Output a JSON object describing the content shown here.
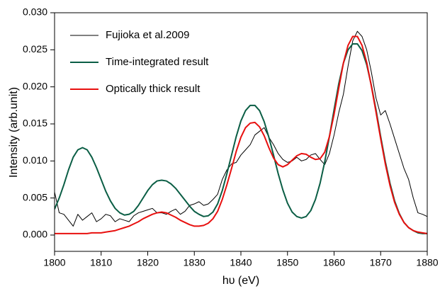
{
  "chart_data": {
    "type": "line",
    "xlabel": "hυ (eV)",
    "ylabel": "Intensity (arb.unit)",
    "xlim": [
      1800,
      1880
    ],
    "xticks": [
      1800,
      1810,
      1820,
      1830,
      1840,
      1850,
      1860,
      1870,
      1880
    ],
    "ylim": [
      -0.0022,
      0.03
    ],
    "yticks": [
      {
        "value": 0,
        "label": "0.000"
      },
      {
        "value": 0.005,
        "label": "0.005"
      },
      {
        "value": 0.01,
        "label": "0.010"
      },
      {
        "value": 0.015,
        "label": "0.015"
      },
      {
        "value": 0.02,
        "label": "0.020"
      },
      {
        "value": 0.025,
        "label": "0.025"
      },
      {
        "value": 0.03,
        "label": "0.030"
      }
    ],
    "legend": "upper left",
    "x": [
      1800,
      1801,
      1802,
      1803,
      1804,
      1805,
      1806,
      1807,
      1808,
      1809,
      1810,
      1811,
      1812,
      1813,
      1814,
      1815,
      1816,
      1817,
      1818,
      1819,
      1820,
      1821,
      1822,
      1823,
      1824,
      1825,
      1826,
      1827,
      1828,
      1829,
      1830,
      1831,
      1832,
      1833,
      1834,
      1835,
      1836,
      1837,
      1838,
      1839,
      1840,
      1841,
      1842,
      1843,
      1844,
      1845,
      1846,
      1847,
      1848,
      1849,
      1850,
      1851,
      1852,
      1853,
      1854,
      1855,
      1856,
      1857,
      1858,
      1859,
      1860,
      1861,
      1862,
      1863,
      1864,
      1865,
      1866,
      1867,
      1868,
      1869,
      1870,
      1871,
      1872,
      1873,
      1874,
      1875,
      1876,
      1877,
      1878,
      1879,
      1880
    ],
    "series": [
      {
        "name": "Fujioka et al.2009",
        "color": "#000000",
        "width": 1,
        "values": [
          0.0058,
          0.003,
          0.0028,
          0.002,
          0.0012,
          0.0028,
          0.002,
          0.0025,
          0.003,
          0.0018,
          0.0022,
          0.0028,
          0.0026,
          0.0018,
          0.0022,
          0.002,
          0.0018,
          0.0026,
          0.003,
          0.0032,
          0.0034,
          0.0036,
          0.003,
          0.003,
          0.0028,
          0.0032,
          0.0035,
          0.0028,
          0.0032,
          0.004,
          0.0042,
          0.0045,
          0.004,
          0.0042,
          0.0048,
          0.0055,
          0.0075,
          0.0088,
          0.0096,
          0.0098,
          0.0108,
          0.0115,
          0.0122,
          0.0135,
          0.014,
          0.0145,
          0.0132,
          0.0122,
          0.011,
          0.0102,
          0.0098,
          0.01,
          0.0105,
          0.01,
          0.0102,
          0.0108,
          0.011,
          0.0102,
          0.0095,
          0.011,
          0.0135,
          0.0165,
          0.019,
          0.0228,
          0.0262,
          0.0275,
          0.0268,
          0.025,
          0.022,
          0.0185,
          0.0162,
          0.0168,
          0.015,
          0.013,
          0.011,
          0.009,
          0.0075,
          0.005,
          0.003,
          0.0028,
          0.0025
        ]
      },
      {
        "name": "Time-integrated result",
        "color": "#0b5e45",
        "width": 2,
        "values": [
          0.0035,
          0.005,
          0.0068,
          0.0088,
          0.0105,
          0.0115,
          0.0118,
          0.0115,
          0.0105,
          0.0091,
          0.0075,
          0.0059,
          0.0046,
          0.0036,
          0.003,
          0.0027,
          0.0028,
          0.0032,
          0.004,
          0.005,
          0.006,
          0.0068,
          0.0073,
          0.0074,
          0.0073,
          0.0069,
          0.0063,
          0.0055,
          0.0047,
          0.0039,
          0.0032,
          0.0028,
          0.0025,
          0.0026,
          0.0031,
          0.0042,
          0.006,
          0.0083,
          0.0108,
          0.0133,
          0.0154,
          0.0168,
          0.0175,
          0.0175,
          0.0168,
          0.0153,
          0.0132,
          0.0108,
          0.0083,
          0.0061,
          0.0043,
          0.0031,
          0.0025,
          0.0023,
          0.0025,
          0.0033,
          0.0048,
          0.007,
          0.0099,
          0.0133,
          0.0169,
          0.0204,
          0.0232,
          0.025,
          0.0258,
          0.0258,
          0.0249,
          0.023,
          0.0202,
          0.0169,
          0.0133,
          0.0099,
          0.007,
          0.0046,
          0.0029,
          0.0017,
          0.001,
          0.0006,
          0.0003,
          0.0002,
          0.0002
        ]
      },
      {
        "name": "Optically thick result",
        "color": "#e8100f",
        "width": 2,
        "values": [
          0.0002,
          0.0002,
          0.0002,
          0.0002,
          0.0002,
          0.0002,
          0.0002,
          0.0002,
          0.0003,
          0.0003,
          0.0003,
          0.0004,
          0.0005,
          0.0006,
          0.0008,
          0.001,
          0.0012,
          0.0015,
          0.0018,
          0.0022,
          0.0025,
          0.0028,
          0.003,
          0.0031,
          0.003,
          0.0027,
          0.0024,
          0.002,
          0.0017,
          0.0014,
          0.0012,
          0.0012,
          0.0013,
          0.0016,
          0.0022,
          0.0032,
          0.0048,
          0.0068,
          0.009,
          0.0113,
          0.0132,
          0.0145,
          0.0151,
          0.0152,
          0.0146,
          0.0134,
          0.0118,
          0.0104,
          0.0095,
          0.0092,
          0.0095,
          0.0101,
          0.0107,
          0.011,
          0.0109,
          0.0105,
          0.0102,
          0.0103,
          0.0112,
          0.0133,
          0.0163,
          0.0198,
          0.0232,
          0.0256,
          0.0268,
          0.0268,
          0.0256,
          0.0233,
          0.0201,
          0.0166,
          0.013,
          0.0096,
          0.0067,
          0.0044,
          0.0028,
          0.0017,
          0.001,
          0.0006,
          0.0004,
          0.0003,
          0.0002
        ]
      }
    ]
  }
}
